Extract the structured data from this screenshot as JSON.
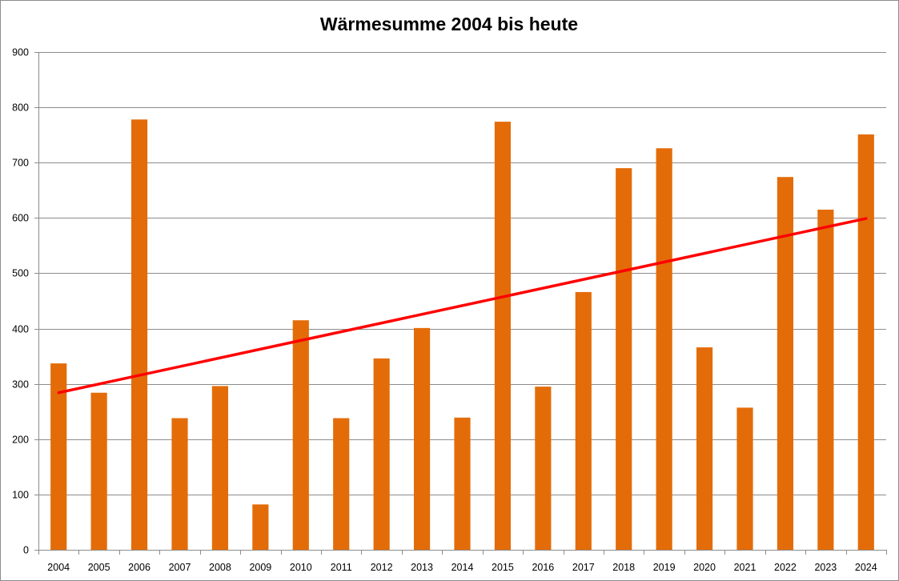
{
  "chart_data": {
    "type": "bar",
    "title": "Wärmesumme 2004 bis heute",
    "xlabel": "",
    "ylabel": "",
    "categories": [
      "2004",
      "2005",
      "2006",
      "2007",
      "2008",
      "2009",
      "2010",
      "2011",
      "2012",
      "2013",
      "2014",
      "2015",
      "2016",
      "2017",
      "2018",
      "2019",
      "2020",
      "2021",
      "2022",
      "2023",
      "2024"
    ],
    "values": [
      337,
      284,
      778,
      238,
      296,
      82,
      415,
      238,
      346,
      401,
      239,
      774,
      295,
      466,
      690,
      726,
      366,
      257,
      674,
      615,
      751
    ],
    "ylim": [
      0,
      900
    ],
    "yticks": [
      0,
      100,
      200,
      300,
      400,
      500,
      600,
      700,
      800,
      900
    ],
    "grid": true,
    "legend": "none",
    "bar_color": "#e36c09",
    "trendline": {
      "type": "linear",
      "color": "#ff0000",
      "start_value": 284,
      "end_value": 599
    }
  }
}
